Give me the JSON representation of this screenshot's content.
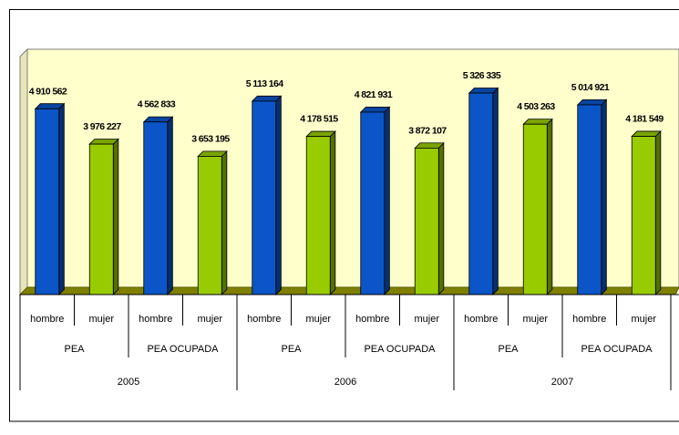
{
  "chart_data": {
    "type": "bar",
    "title": "",
    "xlabel": "",
    "ylabel": "",
    "ylim": [
      0,
      6000000
    ],
    "grid": false,
    "legend": "none",
    "x_levels": {
      "years": [
        "2005",
        "2006",
        "2007"
      ],
      "groups": [
        "PEA",
        "PEA OCUPADA"
      ],
      "genders": [
        "hombre",
        "mujer"
      ]
    },
    "categories": [
      "2005 PEA hombre",
      "2005 PEA mujer",
      "2005 PEA OCUPADA hombre",
      "2005 PEA OCUPADA mujer",
      "2006 PEA hombre",
      "2006 PEA mujer",
      "2006 PEA OCUPADA hombre",
      "2006 PEA OCUPADA mujer",
      "2007 PEA hombre",
      "2007 PEA mujer",
      "2007 PEA OCUPADA hombre",
      "2007 PEA OCUPADA mujer"
    ],
    "values": [
      4910562,
      3976227,
      4562833,
      3653195,
      5113164,
      4178515,
      4821931,
      3872107,
      5326335,
      4503263,
      5014921,
      4181549
    ],
    "value_labels": [
      "4 910 562",
      "3 976 227",
      "4 562 833",
      "3 653 195",
      "5 113 164",
      "4 178 515",
      "4 821 931",
      "3 872 107",
      "5 326 335",
      "4 503 263",
      "5 014 921",
      "4 181 549"
    ],
    "bar_colors": {
      "hombre": "#0b55c8",
      "mujer": "#99cc00"
    },
    "wall_color": "#ffffcc",
    "floor_color": "#808000"
  }
}
